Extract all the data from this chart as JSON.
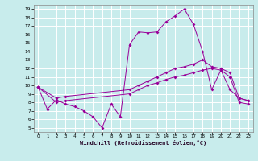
{
  "title": "",
  "xlabel": "Windchill (Refroidissement éolien,°C)",
  "bg_color": "#c8ecec",
  "line_color": "#990099",
  "grid_color": "#aadddd",
  "xlim": [
    -0.5,
    23.5
  ],
  "ylim": [
    4.5,
    19.5
  ],
  "yticks": [
    5,
    6,
    7,
    8,
    9,
    10,
    11,
    12,
    13,
    14,
    15,
    16,
    17,
    18,
    19
  ],
  "xticks": [
    0,
    1,
    2,
    3,
    4,
    5,
    6,
    7,
    8,
    9,
    10,
    11,
    12,
    13,
    14,
    15,
    16,
    17,
    18,
    19,
    20,
    21,
    22,
    23
  ],
  "line1_x": [
    0,
    1,
    2,
    3,
    4,
    5,
    6,
    7,
    8,
    9,
    10,
    11,
    12,
    13,
    14,
    15,
    16,
    17,
    18,
    19,
    20,
    21,
    22,
    23
  ],
  "line1_y": [
    9.8,
    7.2,
    8.3,
    7.8,
    7.5,
    7.0,
    6.3,
    5.0,
    7.8,
    6.3,
    14.8,
    16.3,
    16.2,
    16.3,
    17.5,
    18.2,
    19.0,
    17.2,
    14.0,
    9.5,
    11.8,
    9.5,
    8.5,
    8.2
  ],
  "line2_x": [
    0,
    2,
    3,
    10,
    11,
    12,
    13,
    14,
    15,
    16,
    17,
    18,
    19,
    20,
    21,
    22,
    23
  ],
  "line2_y": [
    9.8,
    8.5,
    8.7,
    9.5,
    10.0,
    10.5,
    11.0,
    11.5,
    12.0,
    12.2,
    12.5,
    13.0,
    12.2,
    12.0,
    11.5,
    8.5,
    8.2
  ],
  "line3_x": [
    0,
    2,
    3,
    10,
    11,
    12,
    13,
    14,
    15,
    16,
    17,
    18,
    19,
    20,
    21,
    22,
    23
  ],
  "line3_y": [
    9.8,
    8.0,
    8.2,
    9.0,
    9.5,
    10.0,
    10.3,
    10.7,
    11.0,
    11.2,
    11.5,
    11.8,
    12.0,
    11.8,
    11.0,
    8.0,
    7.8
  ]
}
